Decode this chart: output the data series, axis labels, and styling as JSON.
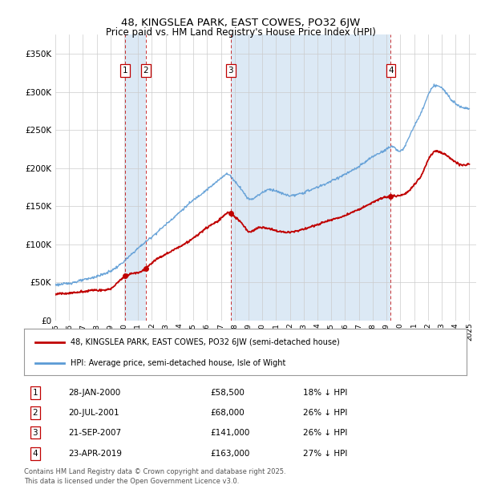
{
  "title": "48, KINGSLEA PARK, EAST COWES, PO32 6JW",
  "subtitle": "Price paid vs. HM Land Registry's House Price Index (HPI)",
  "legend_line1": "48, KINGSLEA PARK, EAST COWES, PO32 6JW (semi-detached house)",
  "legend_line2": "HPI: Average price, semi-detached house, Isle of Wight",
  "footer": "Contains HM Land Registry data © Crown copyright and database right 2025.\nThis data is licensed under the Open Government Licence v3.0.",
  "transactions": [
    {
      "num": 1,
      "date": "28-JAN-2000",
      "price": 58500,
      "pct": "18%",
      "x_year": 2000.07
    },
    {
      "num": 2,
      "date": "20-JUL-2001",
      "price": 68000,
      "pct": "26%",
      "x_year": 2001.55
    },
    {
      "num": 3,
      "date": "21-SEP-2007",
      "price": 141000,
      "pct": "26%",
      "x_year": 2007.72
    },
    {
      "num": 4,
      "date": "23-APR-2019",
      "price": 163000,
      "pct": "27%",
      "x_year": 2019.31
    }
  ],
  "hpi_color": "#5b9bd5",
  "hpi_fill_color": "#c5d9f1",
  "price_color": "#c00000",
  "background_color": "#ffffff",
  "plot_bg_color": "#ffffff",
  "highlight_color": "#dce9f5",
  "ylim": [
    0,
    375000
  ],
  "xlim": [
    1995.0,
    2025.5
  ],
  "yticks": [
    0,
    50000,
    100000,
    150000,
    200000,
    250000,
    300000,
    350000
  ],
  "ytick_labels": [
    "£0",
    "£50K",
    "£100K",
    "£150K",
    "£200K",
    "£250K",
    "£300K",
    "£350K"
  ],
  "xticks": [
    1995,
    1996,
    1997,
    1998,
    1999,
    2000,
    2001,
    2002,
    2003,
    2004,
    2005,
    2006,
    2007,
    2008,
    2009,
    2010,
    2011,
    2012,
    2013,
    2014,
    2015,
    2016,
    2017,
    2018,
    2019,
    2020,
    2021,
    2022,
    2023,
    2024,
    2025
  ],
  "hpi_anchors_x": [
    1995,
    1996,
    1997,
    1998,
    1999,
    2000,
    2001,
    2002,
    2003,
    2004,
    2005,
    2006,
    2007,
    2007.5,
    2008,
    2008.5,
    2009,
    2009.5,
    2010,
    2010.5,
    2011,
    2012,
    2013,
    2014,
    2015,
    2016,
    2017,
    2018,
    2019,
    2019.5,
    2020,
    2020.5,
    2021,
    2021.5,
    2022,
    2022.5,
    2023,
    2023.5,
    2024,
    2024.5,
    2025
  ],
  "hpi_anchors_y": [
    47000,
    49000,
    53000,
    58000,
    65000,
    78000,
    95000,
    110000,
    126000,
    142000,
    158000,
    172000,
    187000,
    192000,
    183000,
    172000,
    160000,
    162000,
    168000,
    172000,
    170000,
    164000,
    168000,
    175000,
    183000,
    192000,
    202000,
    215000,
    225000,
    228000,
    222000,
    235000,
    255000,
    272000,
    295000,
    308000,
    305000,
    295000,
    285000,
    280000,
    278000
  ],
  "price_anchors_x": [
    1995,
    1996,
    1997,
    1998,
    1999,
    2000.07,
    2001.55,
    2002,
    2003,
    2004,
    2005,
    2006,
    2007,
    2007.72,
    2008,
    2008.5,
    2009,
    2009.5,
    2010,
    2011,
    2012,
    2013,
    2014,
    2015,
    2016,
    2017,
    2017.5,
    2018,
    2019.31,
    2020,
    2020.5,
    2021,
    2021.5,
    2022,
    2022.5,
    2023,
    2023.5,
    2024,
    2024.5,
    2025
  ],
  "price_anchors_y": [
    35000,
    36000,
    38000,
    40000,
    42000,
    58500,
    68000,
    76000,
    87000,
    97000,
    108000,
    122000,
    134000,
    141000,
    136000,
    128000,
    117000,
    120000,
    122000,
    118000,
    116000,
    120000,
    126000,
    132000,
    138000,
    146000,
    150000,
    155000,
    163000,
    164000,
    168000,
    178000,
    190000,
    210000,
    222000,
    220000,
    215000,
    208000,
    204000,
    206000
  ]
}
